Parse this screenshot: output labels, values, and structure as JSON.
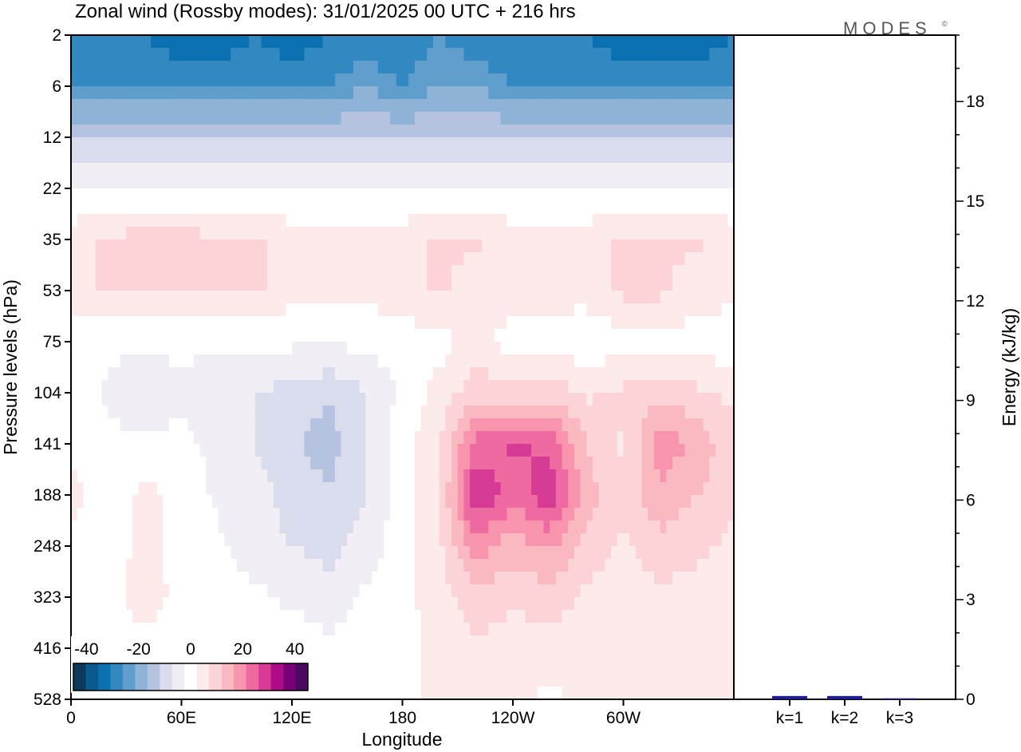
{
  "header": {
    "title": "Zonal wind (Rossby modes):  31/01/2025  00 UTC  + 216 hrs",
    "brand": "MODES",
    "brand_mark": "©"
  },
  "chart_data": [
    {
      "type": "heatmap",
      "title": "Zonal wind (Rossby modes):  31/01/2025  00 UTC  + 216 hrs",
      "xlabel": "Longitude",
      "ylabel": "Pressure levels (hPa)",
      "x_ticks": [
        "0",
        "60E",
        "120E",
        "180",
        "120W",
        "60W"
      ],
      "x_tick_values": [
        0,
        60,
        120,
        180,
        240,
        300
      ],
      "xlim": [
        0,
        360
      ],
      "y_ticks": [
        "2",
        "6",
        "12",
        "22",
        "35",
        "53",
        "75",
        "104",
        "141",
        "188",
        "248",
        "323",
        "416",
        "528"
      ],
      "y_axis": "pressure levels, top to bottom",
      "colorbar": {
        "tick_labels": [
          "-40",
          "-20",
          "0",
          "20",
          "40"
        ],
        "tick_values": [
          -40,
          -20,
          0,
          20,
          40
        ],
        "levels": [
          -45,
          -40,
          -35,
          -30,
          -25,
          -20,
          -15,
          -10,
          -5,
          0,
          5,
          10,
          15,
          20,
          25,
          30,
          35,
          40,
          45
        ],
        "colors": [
          "#0d3a5c",
          "#0b5a8e",
          "#0b71b1",
          "#3288c0",
          "#5f9ecd",
          "#8eb3d6",
          "#b6c3e0",
          "#d9dcec",
          "#f1eef6",
          "#ffffff",
          "#fdeaea",
          "#fcd4d7",
          "#fab8c1",
          "#f894ad",
          "#ef6aa0",
          "#d63b95",
          "#ae0b86",
          "#7a0077",
          "#4a0a62"
        ]
      },
      "field": [
        [
          -35,
          -35,
          -35,
          -40,
          -40,
          -35,
          -40,
          -35,
          -35,
          -35,
          -30,
          -35,
          -35,
          -35,
          -35,
          -40,
          -40,
          -40,
          -35
        ],
        [
          -30,
          -30,
          -30,
          -30,
          -30,
          -30,
          -30,
          -30,
          -25,
          -30,
          -25,
          -25,
          -30,
          -30,
          -30,
          -30,
          -30,
          -30,
          -30
        ],
        [
          -15,
          -15,
          -15,
          -15,
          -15,
          -15,
          -15,
          -15,
          -15,
          -15,
          -15,
          -15,
          -15,
          -15,
          -15,
          -15,
          -15,
          -15,
          -15
        ],
        [
          -5,
          -5,
          -5,
          -5,
          -5,
          -5,
          -5,
          -5,
          -5,
          -5,
          -5,
          -5,
          -5,
          -5,
          -5,
          -5,
          -5,
          -5,
          -5
        ],
        [
          2,
          6,
          7,
          7,
          6,
          6,
          2,
          2,
          2,
          2,
          6,
          6,
          2,
          2,
          2,
          6,
          6,
          6,
          2
        ],
        [
          2,
          6,
          6,
          6,
          6,
          6,
          2,
          2,
          2,
          2,
          6,
          2,
          2,
          2,
          2,
          6,
          6,
          2,
          2
        ],
        [
          -2,
          -4,
          -4,
          -4,
          -4,
          -4,
          -4,
          -4,
          -4,
          -2,
          -2,
          2,
          -2,
          -2,
          -4,
          -2,
          -2,
          -2,
          -4
        ],
        [
          -2,
          -6,
          -8,
          -6,
          -8,
          -10,
          -12,
          -14,
          -10,
          -4,
          2,
          8,
          6,
          8,
          4,
          6,
          8,
          6,
          4
        ],
        [
          -2,
          -4,
          -4,
          -4,
          -6,
          -10,
          -14,
          -18,
          -10,
          -2,
          4,
          22,
          26,
          24,
          10,
          4,
          18,
          14,
          6
        ],
        [
          3,
          -4,
          2,
          -2,
          -6,
          -8,
          -12,
          -14,
          -10,
          -2,
          4,
          30,
          22,
          28,
          12,
          6,
          14,
          10,
          6
        ],
        [
          -2,
          -4,
          2,
          -2,
          -4,
          -8,
          -10,
          -12,
          -8,
          -2,
          4,
          18,
          12,
          16,
          8,
          4,
          8,
          6,
          4
        ],
        [
          -2,
          -2,
          3,
          -2,
          -2,
          -4,
          -6,
          -8,
          -4,
          -2,
          3,
          8,
          6,
          8,
          4,
          3,
          4,
          3,
          2
        ],
        [
          -2,
          -2,
          -2,
          -2,
          -2,
          -2,
          -2,
          -4,
          -2,
          -2,
          2,
          4,
          2,
          3,
          2,
          2,
          2,
          2,
          2
        ],
        [
          -2,
          -2,
          -2,
          -2,
          -2,
          -2,
          -2,
          -2,
          -2,
          -2,
          2,
          2,
          2,
          -2,
          2,
          2,
          2,
          2,
          2
        ]
      ]
    },
    {
      "type": "bar",
      "categories": [
        "k=1",
        "k=2",
        "k=3"
      ],
      "values": [
        0.1,
        0.1,
        0.03
      ],
      "ylabel": "Energy (kJ/kg)",
      "ylim": [
        0,
        20
      ],
      "y_ticks": [
        0,
        3,
        6,
        9,
        12,
        15,
        18
      ],
      "bar_color": "#1f1f8f"
    }
  ]
}
